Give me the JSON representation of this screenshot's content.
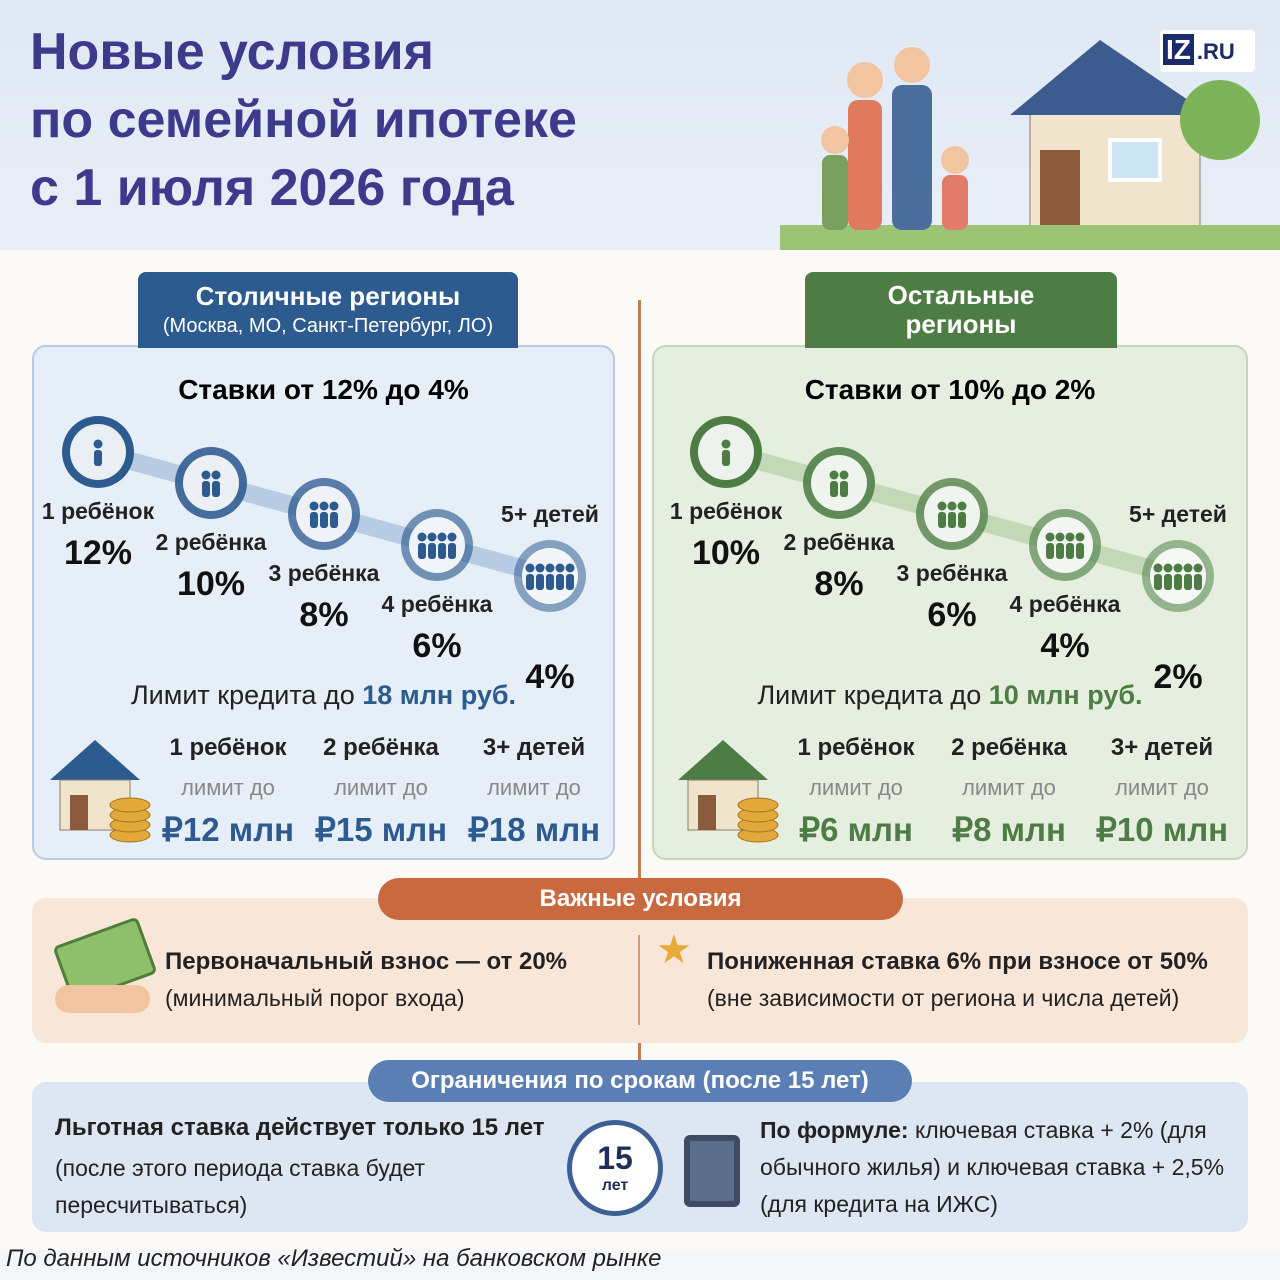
{
  "header": {
    "title_lines": [
      "Новые условия",
      "по семейной ипотеке",
      "с 1 июля 2026 года"
    ],
    "logo": "IZ",
    "logo_suffix": ".RU"
  },
  "regions": [
    {
      "title": "Столичные регионы",
      "subtitle": "(Москва, МО, Санкт-Петербург, ЛО)",
      "rates_heading": "Ставки от 12% до 4%",
      "steps": [
        {
          "label": "1 ребёнок",
          "rate": "12%"
        },
        {
          "label": "2 ребёнка",
          "rate": "10%"
        },
        {
          "label": "3 ребёнка",
          "rate": "8%"
        },
        {
          "label": "4 ребёнка",
          "rate": "6%"
        },
        {
          "label": "5+ детей",
          "rate": "4%"
        }
      ],
      "limit_heading": "Лимит кредита до",
      "limit_value": "18 млн руб.",
      "limits": [
        {
          "label": "1 ребёнок",
          "prefix": "лимит до",
          "amount": "₽12 млн"
        },
        {
          "label": "2 ребёнка",
          "prefix": "лимит до",
          "amount": "₽15 млн"
        },
        {
          "label": "3+ детей",
          "prefix": "лимит до",
          "amount": "₽18 млн"
        }
      ]
    },
    {
      "title": "Остальные регионы",
      "rates_heading": "Ставки от 10% до 2%",
      "steps": [
        {
          "label": "1 ребёнок",
          "rate": "10%"
        },
        {
          "label": "2 ребёнка",
          "rate": "8%"
        },
        {
          "label": "3 ребёнка",
          "rate": "6%"
        },
        {
          "label": "4 ребёнка",
          "rate": "4%"
        },
        {
          "label": "5+ детей",
          "rate": "2%"
        }
      ],
      "limit_heading": "Лимит кредита до",
      "limit_value": "10 млн руб.",
      "limits": [
        {
          "label": "1 ребёнок",
          "prefix": "лимит до",
          "amount": "₽6 млн"
        },
        {
          "label": "2 ребёнка",
          "prefix": "лимит до",
          "amount": "₽8 млн"
        },
        {
          "label": "3+ детей",
          "prefix": "лимит до",
          "amount": "₽10 млн"
        }
      ]
    }
  ],
  "conditions": {
    "title": "Важные условия",
    "items": [
      {
        "title": "Первоначальный взнос — от 20%",
        "note": "(минимальный порог входа)"
      },
      {
        "title": "Пониженная ставка 6% при взносе от 50%",
        "note": "(вне зависимости от региона и числа детей)"
      }
    ]
  },
  "terms": {
    "title": "Ограничения по срокам (после 15 лет)",
    "left_title": "Льготная ставка действует только 15 лет",
    "left_note": "(после этого периода ставка будет пересчитываться)",
    "clock_number": "15",
    "clock_unit": "лет",
    "formula_label": "По формуле:",
    "formula_text": "ключевая ставка + 2% (для обычного жилья) и ключевая ставка + 2,5% (для кредита на ИЖС)"
  },
  "footer": "По данным источников «Известий» на банковском рынке"
}
